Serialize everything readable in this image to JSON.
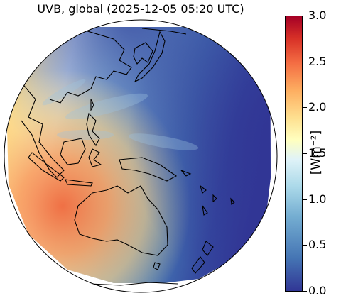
{
  "title": "UVB, global (2025-12-05 05:20 UTC)",
  "colorbar": {
    "label": "[Wm⁻²]",
    "min": 0.0,
    "max": 3.0,
    "ticks": [
      "0.0",
      "0.5",
      "1.0",
      "1.5",
      "2.0",
      "2.5",
      "3.0"
    ],
    "colormap": [
      "#313695",
      "#4575b4",
      "#74add1",
      "#abd9e9",
      "#e0f3f8",
      "#ffffbf",
      "#fee090",
      "#fdae61",
      "#f46d43",
      "#d73027",
      "#a50026"
    ]
  },
  "map": {
    "projection": "orthographic",
    "region": "Asia-Pacific / Australia",
    "land_outline_color": "#000000",
    "ocean_low_color": "#313695"
  }
}
